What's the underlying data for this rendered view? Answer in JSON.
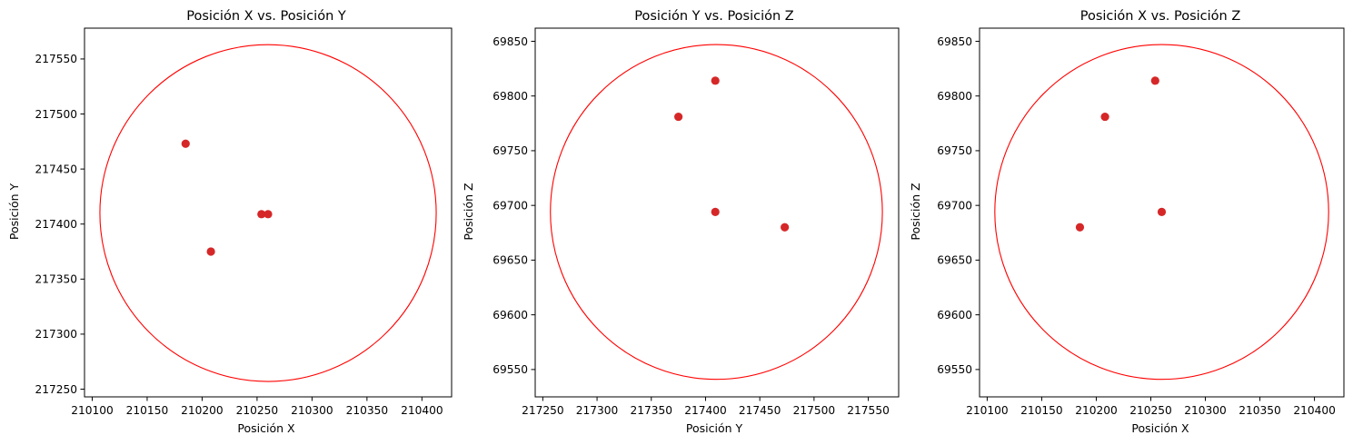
{
  "chart_data": [
    {
      "type": "scatter",
      "title": "Posición X vs. Posición Y",
      "xlabel": "Posición X",
      "ylabel": "Posición Y",
      "xlim": [
        210093,
        210427
      ],
      "ylim": [
        217243,
        217578
      ],
      "xticks": [
        "210100",
        "210150",
        "210200",
        "210250",
        "210300",
        "210350",
        "210400"
      ],
      "yticks": [
        "217250",
        "217300",
        "217350",
        "217400",
        "217450",
        "217500",
        "217550"
      ],
      "points": [
        {
          "x": 210185,
          "y": 217473
        },
        {
          "x": 210208,
          "y": 217375
        },
        {
          "x": 210254,
          "y": 217409
        },
        {
          "x": 210260,
          "y": 217409
        }
      ],
      "circle": {
        "cx": 210260,
        "cy": 217410,
        "r": 153
      },
      "marker_color": "#d62728",
      "circle_color": "#ff0000",
      "grid": false
    },
    {
      "type": "scatter",
      "title": "Posición Y vs. Posición Z",
      "xlabel": "Posición Y",
      "ylabel": "Posición Z",
      "xlim": [
        217243,
        217578
      ],
      "ylim": [
        69525,
        69862
      ],
      "xticks": [
        "217250",
        "217300",
        "217350",
        "217400",
        "217450",
        "217500",
        "217550"
      ],
      "yticks": [
        "69550",
        "69600",
        "69650",
        "69700",
        "69750",
        "69800",
        "69850"
      ],
      "points": [
        {
          "x": 217375,
          "y": 69781
        },
        {
          "x": 217409,
          "y": 69814
        },
        {
          "x": 217409,
          "y": 69694
        },
        {
          "x": 217473,
          "y": 69680
        }
      ],
      "circle": {
        "cx": 217410,
        "cy": 69694,
        "r": 153
      },
      "marker_color": "#d62728",
      "circle_color": "#ff0000",
      "grid": false
    },
    {
      "type": "scatter",
      "title": "Posición X vs. Posición Z",
      "xlabel": "Posición X",
      "ylabel": "Posición Z",
      "xlim": [
        210093,
        210427
      ],
      "ylim": [
        69525,
        69862
      ],
      "xticks": [
        "210100",
        "210150",
        "210200",
        "210250",
        "210300",
        "210350",
        "210400"
      ],
      "yticks": [
        "69550",
        "69600",
        "69650",
        "69700",
        "69750",
        "69800",
        "69850"
      ],
      "points": [
        {
          "x": 210185,
          "y": 69680
        },
        {
          "x": 210208,
          "y": 69781
        },
        {
          "x": 210254,
          "y": 69814
        },
        {
          "x": 210260,
          "y": 69694
        }
      ],
      "circle": {
        "cx": 210260,
        "cy": 69694,
        "r": 153
      },
      "marker_color": "#d62728",
      "circle_color": "#ff0000",
      "grid": false
    }
  ]
}
